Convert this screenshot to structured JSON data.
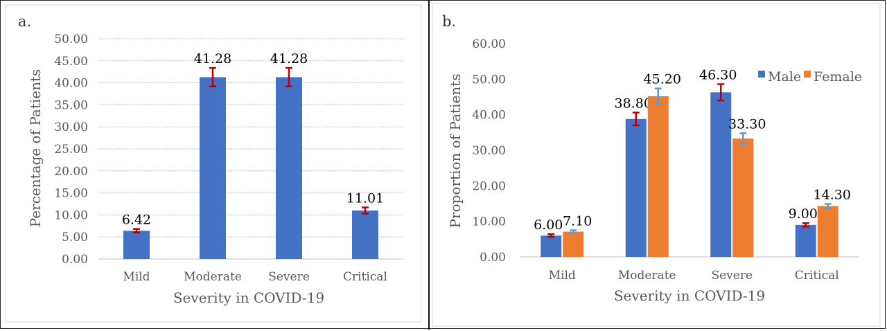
{
  "panels": [
    {
      "panel_label": "a.",
      "chart_data": {
        "type": "bar",
        "categories": [
          "Mild",
          "Moderate",
          "Severe",
          "Critical"
        ],
        "values": [
          6.42,
          41.28,
          41.28,
          11.01
        ],
        "value_labels": [
          "6.42",
          "41.28",
          "41.28",
          "11.01"
        ],
        "error": [
          0.4,
          2.1,
          2.1,
          0.7
        ],
        "y_ticks": [
          "0.00",
          "5.00",
          "10.00",
          "15.00",
          "20.00",
          "25.00",
          "30.00",
          "35.00",
          "40.00",
          "45.00",
          "50.00"
        ],
        "ylim": [
          0,
          50
        ],
        "xlabel": "Severity in COVID-19",
        "ylabel": "Percentage of Patients",
        "bar_color": "#4472C4",
        "error_color": "#C00000",
        "grid": "dotted"
      }
    },
    {
      "panel_label": "b.",
      "chart_data": {
        "type": "bar",
        "categories": [
          "Mild",
          "Moderate",
          "Severe",
          "Critical"
        ],
        "series": [
          {
            "name": "Male",
            "values": [
              6.0,
              38.8,
              46.3,
              9.0
            ],
            "value_labels": [
              "6.00",
              "38.80",
              "46.30",
              "9.00"
            ],
            "error": [
              0.4,
              1.8,
              2.3,
              0.5
            ],
            "color": "#4472C4",
            "error_color": "#C00000"
          },
          {
            "name": "Female",
            "values": [
              7.1,
              45.2,
              33.3,
              14.3
            ],
            "value_labels": [
              "7.10",
              "45.20",
              "33.30",
              "14.30"
            ],
            "error": [
              0.4,
              2.2,
              1.5,
              0.6
            ],
            "color": "#ED7D31",
            "error_color": "#5B9BD5"
          }
        ],
        "y_ticks": [
          "0.00",
          "10.00",
          "20.00",
          "30.00",
          "40.00",
          "50.00",
          "60.00"
        ],
        "ylim": [
          0,
          60
        ],
        "xlabel": "Severity in COVID-19",
        "ylabel": "Proportion of Patients",
        "legend": "top-right",
        "grid": "none"
      }
    }
  ]
}
